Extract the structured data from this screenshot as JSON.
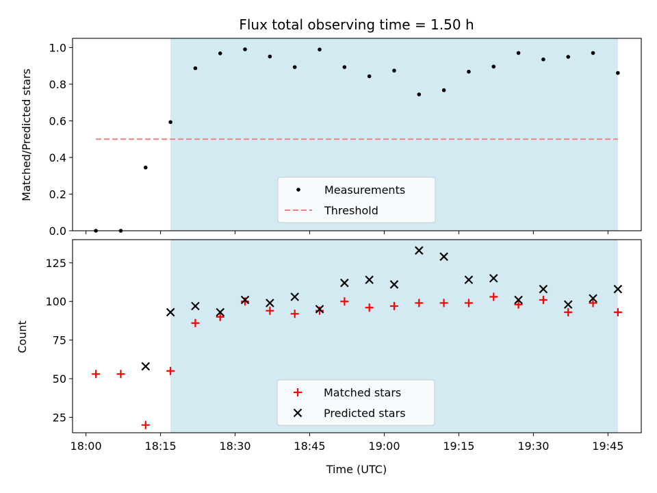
{
  "chart_data": [
    {
      "type": "scatter",
      "title": "Flux total observing time = 1.50 h",
      "xlabel": "",
      "ylabel": "Matched/Predicted stars",
      "ylim": [
        0.0,
        1.05
      ],
      "yticks": [
        0.0,
        0.2,
        0.4,
        0.6,
        0.8,
        1.0
      ],
      "ytick_labels": [
        "0.0",
        "0.2",
        "0.4",
        "0.6",
        "0.8",
        "1.0"
      ],
      "shaded_span": [
        "18:17",
        "19:47"
      ],
      "shade_color": "#add8e6",
      "threshold": {
        "name": "Threshold",
        "value": 0.5,
        "x_range": [
          "18:02",
          "19:47"
        ],
        "color": "#f08080"
      },
      "legend": {
        "location": "lower center",
        "entries": [
          "Measurements",
          "Threshold"
        ]
      },
      "series": [
        {
          "name": "Measurements",
          "color": "#000000",
          "marker": "dot",
          "x": [
            "18:02",
            "18:07",
            "18:12",
            "18:17",
            "18:22",
            "18:27",
            "18:32",
            "18:37",
            "18:42",
            "18:47",
            "18:52",
            "18:57",
            "19:02",
            "19:07",
            "19:12",
            "19:17",
            "19:22",
            "19:27",
            "19:32",
            "19:37",
            "19:42",
            "19:47"
          ],
          "y": [
            0.0,
            0.0,
            0.345,
            0.593,
            0.887,
            0.968,
            0.99,
            0.951,
            0.893,
            0.989,
            0.893,
            0.843,
            0.874,
            0.744,
            0.767,
            0.868,
            0.896,
            0.97,
            0.935,
            0.949,
            0.97,
            0.861
          ]
        }
      ]
    },
    {
      "type": "scatter",
      "title": "",
      "xlabel": "Time (UTC)",
      "ylabel": "Count",
      "ylim": [
        15,
        140
      ],
      "yticks": [
        25,
        50,
        75,
        100,
        125
      ],
      "ytick_labels": [
        "25",
        "50",
        "75",
        "100",
        "125"
      ],
      "xticks": [
        "18:00",
        "18:15",
        "18:30",
        "18:45",
        "19:00",
        "19:15",
        "19:30",
        "19:45"
      ],
      "shaded_span": [
        "18:17",
        "19:47"
      ],
      "shade_color": "#add8e6",
      "legend": {
        "location": "lower center",
        "entries": [
          "Matched stars",
          "Predicted stars"
        ]
      },
      "series": [
        {
          "name": "Matched stars",
          "color": "#ff0000",
          "marker": "plus",
          "x": [
            "18:02",
            "18:07",
            "18:12",
            "18:17",
            "18:22",
            "18:27",
            "18:32",
            "18:37",
            "18:42",
            "18:47",
            "18:52",
            "18:57",
            "19:02",
            "19:07",
            "19:12",
            "19:17",
            "19:22",
            "19:27",
            "19:32",
            "19:37",
            "19:42",
            "19:47"
          ],
          "y": [
            53,
            53,
            20,
            55,
            86,
            90,
            100,
            94,
            92,
            94,
            100,
            96,
            97,
            99,
            99,
            99,
            103,
            98,
            101,
            93,
            99,
            93
          ]
        },
        {
          "name": "Predicted stars",
          "color": "#000000",
          "marker": "x",
          "x": [
            "18:12",
            "18:17",
            "18:22",
            "18:27",
            "18:32",
            "18:37",
            "18:42",
            "18:47",
            "18:52",
            "18:57",
            "19:02",
            "19:07",
            "19:12",
            "19:17",
            "19:22",
            "19:27",
            "19:32",
            "19:37",
            "19:42",
            "19:47"
          ],
          "y": [
            58,
            93,
            97,
            93,
            101,
            99,
            103,
            95,
            112,
            114,
            111,
            133,
            129,
            114,
            115,
            101,
            108,
            98,
            102,
            108
          ]
        }
      ]
    }
  ]
}
